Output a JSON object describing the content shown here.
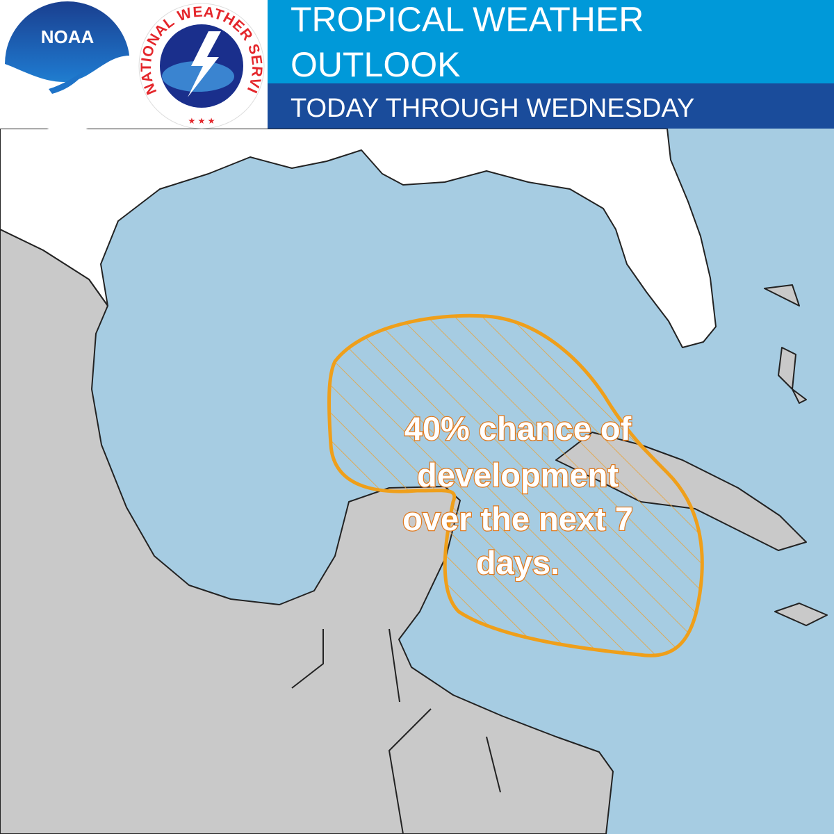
{
  "header": {
    "title_lines": [
      "TROPICAL WEATHER",
      "OUTLOOK"
    ],
    "subtitle": "TODAY THROUGH WEDNESDAY",
    "logos": {
      "noaa": "NOAA",
      "nws": "NATIONAL WEATHER SERVICE"
    }
  },
  "map": {
    "annotation_lines": [
      "40% chance of",
      "development",
      "over the next 7",
      "days."
    ]
  }
}
